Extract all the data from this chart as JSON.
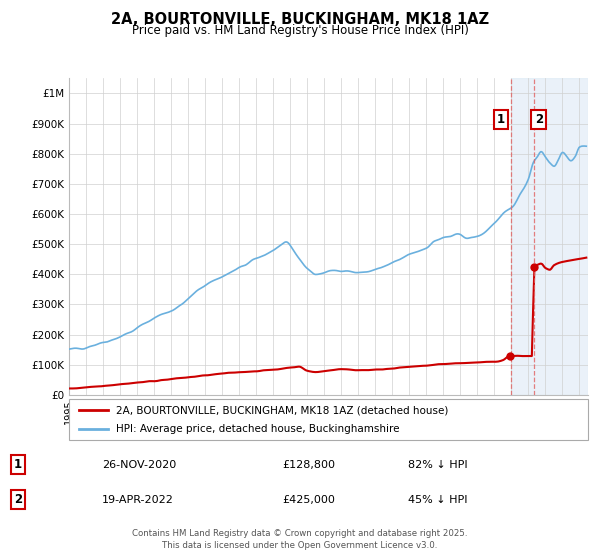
{
  "title": "2A, BOURTONVILLE, BUCKINGHAM, MK18 1AZ",
  "subtitle": "Price paid vs. HM Land Registry's House Price Index (HPI)",
  "hpi_color": "#6ab0de",
  "price_color": "#cc0000",
  "highlight_color": "#dce9f5",
  "vline_color": "#e06060",
  "marker_color": "#cc0000",
  "legend_label_price": "2A, BOURTONVILLE, BUCKINGHAM, MK18 1AZ (detached house)",
  "legend_label_hpi": "HPI: Average price, detached house, Buckinghamshire",
  "annotation1_date": "26-NOV-2020",
  "annotation1_price": "£128,800",
  "annotation1_hpi": "82% ↓ HPI",
  "annotation2_date": "19-APR-2022",
  "annotation2_price": "£425,000",
  "annotation2_hpi": "45% ↓ HPI",
  "footer": "Contains HM Land Registry data © Crown copyright and database right 2025.\nThis data is licensed under the Open Government Licence v3.0.",
  "ylim": [
    0,
    1050000
  ],
  "yticks": [
    0,
    100000,
    200000,
    300000,
    400000,
    500000,
    600000,
    700000,
    800000,
    900000,
    1000000
  ],
  "ytick_labels": [
    "£0",
    "£100K",
    "£200K",
    "£300K",
    "£400K",
    "£500K",
    "£600K",
    "£700K",
    "£800K",
    "£900K",
    "£1M"
  ],
  "xmin": 1995.0,
  "xmax": 2025.5,
  "highlight_xmin": 2021.0,
  "highlight_xmax": 2025.5,
  "marker1_x": 2020.9,
  "marker1_y": 128800,
  "marker2_x": 2022.3,
  "marker2_y": 425000,
  "vline1_x": 2021.0,
  "vline2_x": 2022.3,
  "badge1_year": 2021.0,
  "badge2_year": 2022.3
}
